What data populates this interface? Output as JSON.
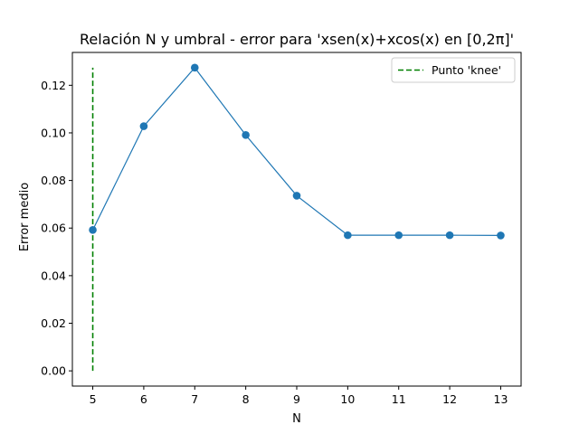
{
  "chart_data": {
    "type": "line",
    "title": "Relación N y umbral - error para 'xsen(x)+xcos(x) en [0,2π]'",
    "xlabel": "N",
    "ylabel": "Error medio",
    "xlim": [
      4.6,
      13.4
    ],
    "ylim": [
      -0.0064,
      0.1338
    ],
    "xticks": [
      5,
      6,
      7,
      8,
      9,
      10,
      11,
      12,
      13
    ],
    "yticks": [
      0.0,
      0.02,
      0.04,
      0.06,
      0.08,
      0.1,
      0.12
    ],
    "grid": false,
    "legend_position": "top-right",
    "series": [
      {
        "x": [
          5,
          6,
          7,
          8,
          9,
          10,
          11,
          12,
          13
        ],
        "values": [
          0.0592,
          0.1028,
          0.1274,
          0.0991,
          0.0736,
          0.057,
          0.057,
          0.057,
          0.0569
        ],
        "color": "#1f77b4",
        "marker": "circle"
      }
    ],
    "vline": {
      "name": "Punto 'knee'",
      "x": 5,
      "y_range": [
        0,
        0.1274
      ],
      "color": "#008000",
      "style": "dashed"
    }
  }
}
